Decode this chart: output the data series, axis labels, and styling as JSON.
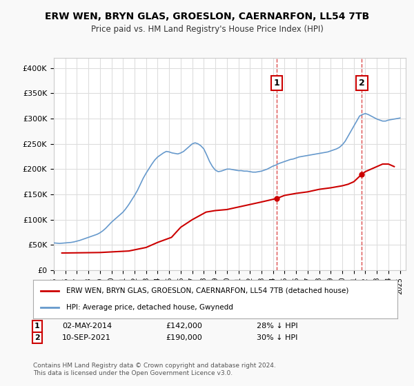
{
  "title": "ERW WEN, BRYN GLAS, GROESLON, CAERNARFON, LL54 7TB",
  "subtitle": "Price paid vs. HM Land Registry's House Price Index (HPI)",
  "xlabel": "",
  "ylabel": "",
  "ylim": [
    0,
    420000
  ],
  "yticks": [
    0,
    50000,
    100000,
    150000,
    200000,
    250000,
    300000,
    350000,
    400000
  ],
  "ytick_labels": [
    "£0",
    "£50K",
    "£100K",
    "£150K",
    "£200K",
    "£250K",
    "£300K",
    "£350K",
    "£400K"
  ],
  "xlim_start": 1995.0,
  "xlim_end": 2025.5,
  "background_color": "#f9f9f9",
  "plot_bg_color": "#ffffff",
  "grid_color": "#dddddd",
  "red_line_color": "#cc0000",
  "blue_line_color": "#6699cc",
  "marker1_x": 2014.33,
  "marker2_x": 2021.7,
  "marker1_label": "1",
  "marker2_label": "2",
  "annotation1": "02-MAY-2014    £142,000    28% ↓ HPI",
  "annotation2": "10-SEP-2021    £190,000    30% ↓ HPI",
  "legend_label_red": "ERW WEN, BRYN GLAS, GROESLON, CAERNARFON, LL54 7TB (detached house)",
  "legend_label_blue": "HPI: Average price, detached house, Gwynedd",
  "footer": "Contains HM Land Registry data © Crown copyright and database right 2024.\nThis data is licensed under the Open Government Licence v3.0.",
  "hpi_x": [
    1995.0,
    1995.25,
    1995.5,
    1995.75,
    1996.0,
    1996.25,
    1996.5,
    1996.75,
    1997.0,
    1997.25,
    1997.5,
    1997.75,
    1998.0,
    1998.25,
    1998.5,
    1998.75,
    1999.0,
    1999.25,
    1999.5,
    1999.75,
    2000.0,
    2000.25,
    2000.5,
    2000.75,
    2001.0,
    2001.25,
    2001.5,
    2001.75,
    2002.0,
    2002.25,
    2002.5,
    2002.75,
    2003.0,
    2003.25,
    2003.5,
    2003.75,
    2004.0,
    2004.25,
    2004.5,
    2004.75,
    2005.0,
    2005.25,
    2005.5,
    2005.75,
    2006.0,
    2006.25,
    2006.5,
    2006.75,
    2007.0,
    2007.25,
    2007.5,
    2007.75,
    2008.0,
    2008.25,
    2008.5,
    2008.75,
    2009.0,
    2009.25,
    2009.5,
    2009.75,
    2010.0,
    2010.25,
    2010.5,
    2010.75,
    2011.0,
    2011.25,
    2011.5,
    2011.75,
    2012.0,
    2012.25,
    2012.5,
    2012.75,
    2013.0,
    2013.25,
    2013.5,
    2013.75,
    2014.0,
    2014.25,
    2014.5,
    2014.75,
    2015.0,
    2015.25,
    2015.5,
    2015.75,
    2016.0,
    2016.25,
    2016.5,
    2016.75,
    2017.0,
    2017.25,
    2017.5,
    2017.75,
    2018.0,
    2018.25,
    2018.5,
    2018.75,
    2019.0,
    2019.25,
    2019.5,
    2019.75,
    2020.0,
    2020.25,
    2020.5,
    2020.75,
    2021.0,
    2021.25,
    2021.5,
    2021.75,
    2022.0,
    2022.25,
    2022.5,
    2022.75,
    2023.0,
    2023.25,
    2023.5,
    2023.75,
    2024.0,
    2024.25,
    2024.5,
    2024.75,
    2025.0
  ],
  "hpi_y": [
    54000,
    53500,
    53000,
    53500,
    54000,
    54500,
    55000,
    56000,
    57500,
    59000,
    61000,
    63000,
    65000,
    67000,
    69000,
    71000,
    74000,
    78000,
    83000,
    89000,
    95000,
    100000,
    105000,
    110000,
    115000,
    122000,
    130000,
    139000,
    148000,
    158000,
    170000,
    182000,
    192000,
    201000,
    210000,
    218000,
    224000,
    228000,
    232000,
    235000,
    234000,
    232000,
    231000,
    230000,
    232000,
    235000,
    240000,
    245000,
    250000,
    252000,
    250000,
    246000,
    240000,
    228000,
    215000,
    205000,
    198000,
    195000,
    196000,
    198000,
    200000,
    200000,
    199000,
    198000,
    197000,
    197000,
    196000,
    196000,
    195000,
    194000,
    194000,
    195000,
    196000,
    198000,
    200000,
    203000,
    206000,
    208000,
    211000,
    213000,
    215000,
    217000,
    219000,
    220000,
    222000,
    224000,
    225000,
    226000,
    227000,
    228000,
    229000,
    230000,
    231000,
    232000,
    233000,
    234000,
    236000,
    238000,
    240000,
    243000,
    248000,
    255000,
    265000,
    275000,
    285000,
    295000,
    305000,
    308000,
    310000,
    308000,
    305000,
    302000,
    299000,
    297000,
    295000,
    295000,
    297000,
    298000,
    299000,
    300000,
    301000
  ],
  "red_x": [
    1995.7,
    1999.0,
    2001.5,
    2003.0,
    2004.0,
    2005.2,
    2006.0,
    2007.0,
    2008.2,
    2009.0,
    2010.0,
    2011.0,
    2012.0,
    2013.0,
    2014.33,
    2015.0,
    2016.0,
    2017.0,
    2018.0,
    2019.0,
    2019.5,
    2020.0,
    2020.5,
    2021.0,
    2021.7,
    2022.0,
    2022.5,
    2023.0,
    2023.5,
    2024.0,
    2024.5
  ],
  "red_y": [
    34000,
    35000,
    38000,
    45000,
    55000,
    65000,
    85000,
    100000,
    115000,
    118000,
    120000,
    125000,
    130000,
    135000,
    142000,
    148000,
    152000,
    155000,
    160000,
    163000,
    165000,
    167000,
    170000,
    175000,
    190000,
    195000,
    200000,
    205000,
    210000,
    210000,
    205000
  ]
}
